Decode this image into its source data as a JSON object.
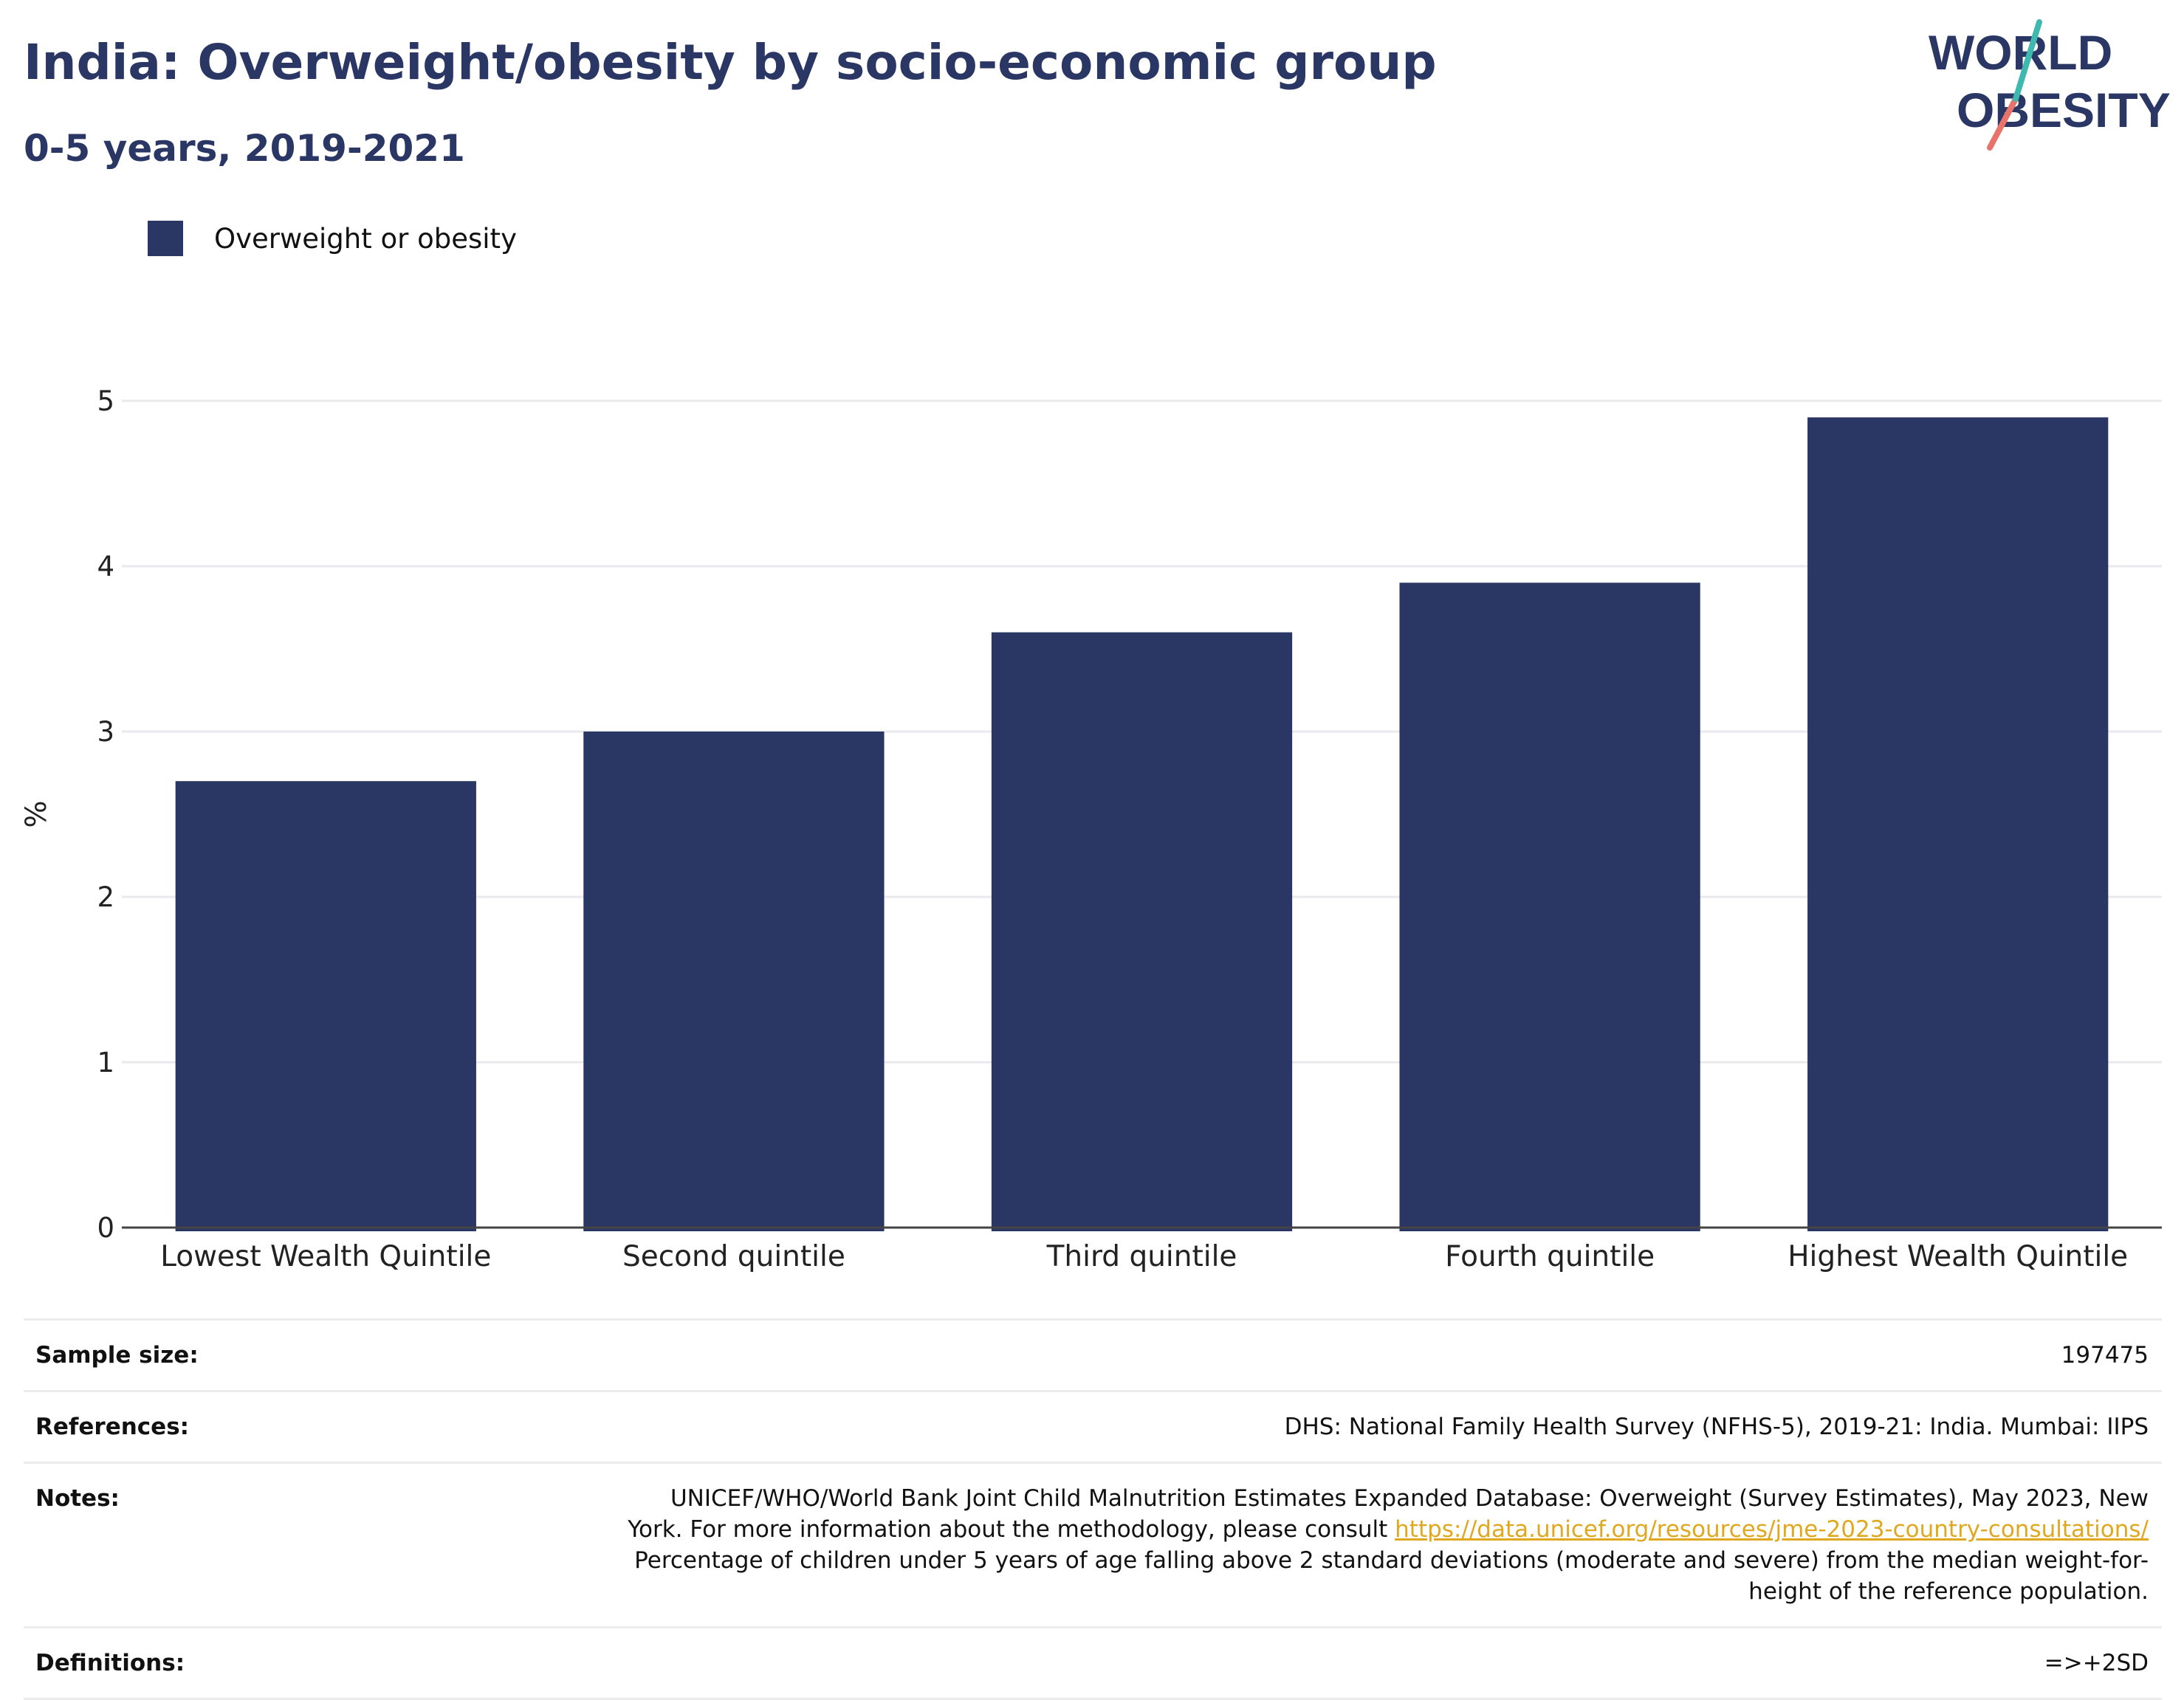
{
  "header": {
    "title": "India: Overweight/obesity by socio-economic group",
    "subtitle": "0-5 years, 2019-2021"
  },
  "logo": {
    "line1": "WORLD",
    "line2": "OBESITY"
  },
  "colors": {
    "bar": "#2a3663",
    "accent_teal": "#3fb8af",
    "accent_red": "#e8736a",
    "link": "#e0a81e"
  },
  "chart_data": {
    "type": "bar",
    "categories": [
      "Lowest Wealth Quintile",
      "Second quintile",
      "Third quintile",
      "Fourth quintile",
      "Highest Wealth Quintile"
    ],
    "series": [
      {
        "name": "Overweight or obesity",
        "values": [
          2.7,
          3.0,
          3.6,
          3.9,
          4.9
        ]
      }
    ],
    "ylabel": "%",
    "ylim": [
      0,
      5
    ],
    "yticks": [
      0,
      1,
      2,
      3,
      4,
      5
    ],
    "grid": true,
    "legend_position": "top-left"
  },
  "footer": {
    "sample_size_label": "Sample size:",
    "sample_size_value": "197475",
    "references_label": "References:",
    "references_value": "DHS: National Family Health Survey (NFHS-5), 2019-21: India. Mumbai: IIPS",
    "notes_label": "Notes:",
    "notes_text_before": "UNICEF/WHO/World Bank Joint Child Malnutrition Estimates Expanded Database: Overweight (Survey Estimates), May 2023, New York. For more information about the methodology, please consult ",
    "notes_link": "https://data.unicef.org/resources/jme-2023-country-consultations/",
    "notes_text_after": "Percentage of children under 5 years of age falling above 2 standard deviations (moderate and severe) from the median weight-for-height of the reference population.",
    "definitions_label": "Definitions:",
    "definitions_value": "=>+2SD"
  }
}
